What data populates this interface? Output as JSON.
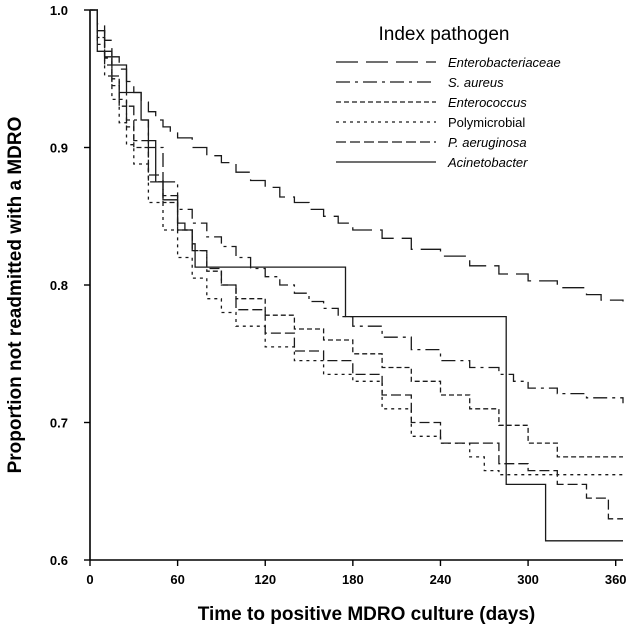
{
  "chart_data": {
    "type": "line",
    "subtype": "kaplan-meier step curves",
    "xlabel": "Time to positive MDRO culture (days)",
    "ylabel": "Proportion not readmitted with a MDRO",
    "xlim": [
      0,
      365
    ],
    "ylim": [
      0.6,
      1.0
    ],
    "x_ticks": [
      0,
      60,
      120,
      180,
      240,
      300,
      360
    ],
    "y_ticks": [
      0.6,
      0.7,
      0.8,
      0.9,
      1.0
    ],
    "y_tick_labels": [
      "0.6",
      "0.7",
      "0.8",
      "0.9",
      "1.0"
    ],
    "grid": false,
    "legend": {
      "title": "Index pathogen",
      "position": "top-right"
    },
    "series": [
      {
        "name": "Enterobacteriaceae",
        "dash": "long-dash",
        "italic": true,
        "x": [
          0,
          5,
          10,
          15,
          20,
          25,
          30,
          35,
          40,
          45,
          50,
          55,
          60,
          70,
          80,
          90,
          100,
          110,
          120,
          130,
          140,
          150,
          160,
          170,
          180,
          200,
          220,
          240,
          260,
          280,
          300,
          320,
          340,
          350,
          365
        ],
        "y": [
          1.0,
          0.99,
          0.978,
          0.966,
          0.957,
          0.948,
          0.94,
          0.933,
          0.926,
          0.92,
          0.915,
          0.911,
          0.907,
          0.9,
          0.894,
          0.889,
          0.882,
          0.876,
          0.871,
          0.864,
          0.86,
          0.855,
          0.85,
          0.845,
          0.84,
          0.834,
          0.826,
          0.821,
          0.814,
          0.808,
          0.803,
          0.798,
          0.793,
          0.789,
          0.788
        ]
      },
      {
        "name": "S. aureus",
        "dash": "dash-dot",
        "italic": true,
        "x": [
          0,
          5,
          10,
          15,
          20,
          25,
          30,
          40,
          50,
          60,
          70,
          80,
          90,
          100,
          110,
          120,
          130,
          140,
          150,
          160,
          170,
          180,
          200,
          220,
          240,
          260,
          280,
          290,
          300,
          320,
          340,
          365
        ],
        "y": [
          1.0,
          0.985,
          0.966,
          0.952,
          0.94,
          0.93,
          0.92,
          0.9,
          0.875,
          0.855,
          0.845,
          0.835,
          0.828,
          0.82,
          0.812,
          0.806,
          0.8,
          0.794,
          0.788,
          0.783,
          0.777,
          0.77,
          0.762,
          0.753,
          0.745,
          0.74,
          0.735,
          0.73,
          0.725,
          0.721,
          0.718,
          0.714
        ]
      },
      {
        "name": "Enterococcus",
        "dash": "short-dash",
        "italic": true,
        "x": [
          0,
          5,
          10,
          15,
          20,
          25,
          30,
          40,
          50,
          60,
          70,
          80,
          90,
          100,
          120,
          140,
          160,
          180,
          200,
          220,
          240,
          260,
          280,
          300,
          320,
          365
        ],
        "y": [
          1.0,
          0.98,
          0.96,
          0.945,
          0.93,
          0.915,
          0.9,
          0.875,
          0.86,
          0.84,
          0.825,
          0.81,
          0.8,
          0.79,
          0.778,
          0.768,
          0.76,
          0.75,
          0.74,
          0.73,
          0.72,
          0.71,
          0.698,
          0.685,
          0.675,
          0.675
        ]
      },
      {
        "name": "Polymicrobial",
        "dash": "fine-dash",
        "italic": false,
        "x": [
          0,
          5,
          10,
          15,
          20,
          25,
          30,
          40,
          50,
          60,
          70,
          80,
          90,
          100,
          120,
          140,
          160,
          180,
          200,
          220,
          240,
          260,
          270,
          280,
          300,
          365
        ],
        "y": [
          1.0,
          0.975,
          0.952,
          0.935,
          0.918,
          0.902,
          0.888,
          0.86,
          0.84,
          0.82,
          0.805,
          0.79,
          0.78,
          0.77,
          0.755,
          0.745,
          0.735,
          0.73,
          0.71,
          0.69,
          0.685,
          0.675,
          0.665,
          0.662,
          0.662,
          0.662
        ]
      },
      {
        "name": "P. aeruginosa",
        "dash": "medium-dash",
        "italic": true,
        "x": [
          0,
          5,
          10,
          15,
          20,
          25,
          30,
          40,
          50,
          60,
          70,
          80,
          90,
          100,
          120,
          140,
          160,
          180,
          200,
          220,
          240,
          260,
          280,
          300,
          320,
          340,
          355,
          365
        ],
        "y": [
          1.0,
          0.985,
          0.965,
          0.95,
          0.935,
          0.92,
          0.905,
          0.88,
          0.865,
          0.84,
          0.825,
          0.812,
          0.8,
          0.782,
          0.765,
          0.752,
          0.745,
          0.735,
          0.72,
          0.7,
          0.685,
          0.685,
          0.67,
          0.665,
          0.655,
          0.645,
          0.63,
          0.63
        ]
      },
      {
        "name": "Acinetobacter",
        "dash": "solid",
        "italic": true,
        "x": [
          0,
          5,
          15,
          25,
          35,
          40,
          45,
          50,
          60,
          65,
          70,
          72,
          172,
          175,
          280,
          285,
          310,
          312,
          365
        ],
        "y": [
          1.0,
          0.97,
          0.96,
          0.94,
          0.92,
          0.905,
          0.875,
          0.862,
          0.845,
          0.84,
          0.83,
          0.813,
          0.813,
          0.777,
          0.777,
          0.655,
          0.655,
          0.614,
          0.614
        ]
      }
    ]
  }
}
